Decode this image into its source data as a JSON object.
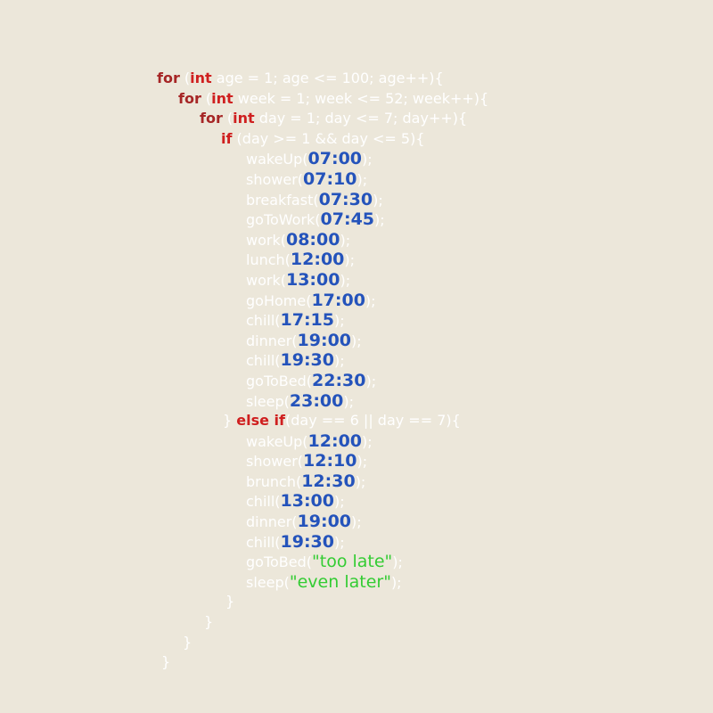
{
  "palette": {
    "background": "#ece7da",
    "plain": "#ffffff",
    "keyword_for": "#a62626",
    "keyword": "#cf1f1f",
    "time": "#2453bb",
    "string": "#33cc33"
  },
  "code": {
    "language": "c-like-pseudocode",
    "lines": [
      {
        "indent": 0,
        "segments": [
          {
            "type": "kwfor",
            "text": "for"
          },
          {
            "type": "plain",
            "text": " ("
          },
          {
            "type": "kw",
            "text": "int"
          },
          {
            "type": "plain",
            "text": " age = 1; age <= 100; age++){"
          }
        ]
      },
      {
        "indent": 24,
        "segments": [
          {
            "type": "kwfor",
            "text": "for"
          },
          {
            "type": "plain",
            "text": " ("
          },
          {
            "type": "kw",
            "text": "int"
          },
          {
            "type": "plain",
            "text": " week = 1; week <= 52; week++){"
          }
        ]
      },
      {
        "indent": 48,
        "segments": [
          {
            "type": "kwfor",
            "text": "for"
          },
          {
            "type": "plain",
            "text": " ("
          },
          {
            "type": "kw",
            "text": "int"
          },
          {
            "type": "plain",
            "text": " day = 1; day <= 7; day++){"
          }
        ]
      },
      {
        "indent": 72,
        "segments": [
          {
            "type": "kw",
            "text": "if"
          },
          {
            "type": "plain",
            "text": " (day >= 1 && day <= 5){"
          }
        ]
      },
      {
        "indent": 100,
        "segments": [
          {
            "type": "plain",
            "text": "wakeUp("
          },
          {
            "type": "time",
            "text": "07:00"
          },
          {
            "type": "plain",
            "text": ");"
          }
        ]
      },
      {
        "indent": 100,
        "segments": [
          {
            "type": "plain",
            "text": "shower("
          },
          {
            "type": "time",
            "text": "07:10"
          },
          {
            "type": "plain",
            "text": ");"
          }
        ]
      },
      {
        "indent": 100,
        "segments": [
          {
            "type": "plain",
            "text": "breakfast("
          },
          {
            "type": "time",
            "text": "07:30"
          },
          {
            "type": "plain",
            "text": ");"
          }
        ]
      },
      {
        "indent": 100,
        "segments": [
          {
            "type": "plain",
            "text": "goToWork("
          },
          {
            "type": "time",
            "text": "07:45"
          },
          {
            "type": "plain",
            "text": ");"
          }
        ]
      },
      {
        "indent": 100,
        "segments": [
          {
            "type": "plain",
            "text": "work("
          },
          {
            "type": "time",
            "text": "08:00"
          },
          {
            "type": "plain",
            "text": ");"
          }
        ]
      },
      {
        "indent": 100,
        "segments": [
          {
            "type": "plain",
            "text": "lunch("
          },
          {
            "type": "time",
            "text": "12:00"
          },
          {
            "type": "plain",
            "text": ");"
          }
        ]
      },
      {
        "indent": 100,
        "segments": [
          {
            "type": "plain",
            "text": "work("
          },
          {
            "type": "time",
            "text": "13:00"
          },
          {
            "type": "plain",
            "text": ");"
          }
        ]
      },
      {
        "indent": 100,
        "segments": [
          {
            "type": "plain",
            "text": "goHome("
          },
          {
            "type": "time",
            "text": "17:00"
          },
          {
            "type": "plain",
            "text": ");"
          }
        ]
      },
      {
        "indent": 100,
        "segments": [
          {
            "type": "plain",
            "text": "chill("
          },
          {
            "type": "time",
            "text": "17:15"
          },
          {
            "type": "plain",
            "text": ");"
          }
        ]
      },
      {
        "indent": 100,
        "segments": [
          {
            "type": "plain",
            "text": "dinner("
          },
          {
            "type": "time",
            "text": "19:00"
          },
          {
            "type": "plain",
            "text": ");"
          }
        ]
      },
      {
        "indent": 100,
        "segments": [
          {
            "type": "plain",
            "text": "chill("
          },
          {
            "type": "time",
            "text": "19:30"
          },
          {
            "type": "plain",
            "text": ");"
          }
        ]
      },
      {
        "indent": 100,
        "segments": [
          {
            "type": "plain",
            "text": "goToBed("
          },
          {
            "type": "time",
            "text": "22:30"
          },
          {
            "type": "plain",
            "text": ");"
          }
        ]
      },
      {
        "indent": 100,
        "segments": [
          {
            "type": "plain",
            "text": "sleep("
          },
          {
            "type": "time",
            "text": "23:00"
          },
          {
            "type": "plain",
            "text": ");"
          }
        ]
      },
      {
        "indent": 74,
        "segments": [
          {
            "type": "plain",
            "text": "} "
          },
          {
            "type": "kw",
            "text": "else if"
          },
          {
            "type": "plain",
            "text": "(day == 6 || day == 7){"
          }
        ]
      },
      {
        "indent": 100,
        "segments": [
          {
            "type": "plain",
            "text": "wakeUp("
          },
          {
            "type": "time",
            "text": "12:00"
          },
          {
            "type": "plain",
            "text": ");"
          }
        ]
      },
      {
        "indent": 100,
        "segments": [
          {
            "type": "plain",
            "text": "shower("
          },
          {
            "type": "time",
            "text": "12:10"
          },
          {
            "type": "plain",
            "text": ");"
          }
        ]
      },
      {
        "indent": 100,
        "segments": [
          {
            "type": "plain",
            "text": "brunch("
          },
          {
            "type": "time",
            "text": "12:30"
          },
          {
            "type": "plain",
            "text": ");"
          }
        ]
      },
      {
        "indent": 100,
        "segments": [
          {
            "type": "plain",
            "text": "chill("
          },
          {
            "type": "time",
            "text": "13:00"
          },
          {
            "type": "plain",
            "text": ");"
          }
        ]
      },
      {
        "indent": 100,
        "segments": [
          {
            "type": "plain",
            "text": "dinner("
          },
          {
            "type": "time",
            "text": "19:00"
          },
          {
            "type": "plain",
            "text": ");"
          }
        ]
      },
      {
        "indent": 100,
        "segments": [
          {
            "type": "plain",
            "text": "chill("
          },
          {
            "type": "time",
            "text": "19:30"
          },
          {
            "type": "plain",
            "text": ");"
          }
        ]
      },
      {
        "indent": 100,
        "segments": [
          {
            "type": "plain",
            "text": "goToBed("
          },
          {
            "type": "str",
            "text": "\"too late\""
          },
          {
            "type": "plain",
            "text": ");"
          }
        ]
      },
      {
        "indent": 100,
        "segments": [
          {
            "type": "plain",
            "text": "sleep("
          },
          {
            "type": "str",
            "text": "\"even later\""
          },
          {
            "type": "plain",
            "text": ");"
          }
        ]
      },
      {
        "indent": 77,
        "segments": [
          {
            "type": "plain",
            "text": "}"
          }
        ]
      },
      {
        "indent": 53,
        "segments": [
          {
            "type": "plain",
            "text": "}"
          }
        ]
      },
      {
        "indent": 29,
        "segments": [
          {
            "type": "plain",
            "text": "}"
          }
        ]
      },
      {
        "indent": 5,
        "segments": [
          {
            "type": "plain",
            "text": "}"
          }
        ]
      }
    ]
  }
}
